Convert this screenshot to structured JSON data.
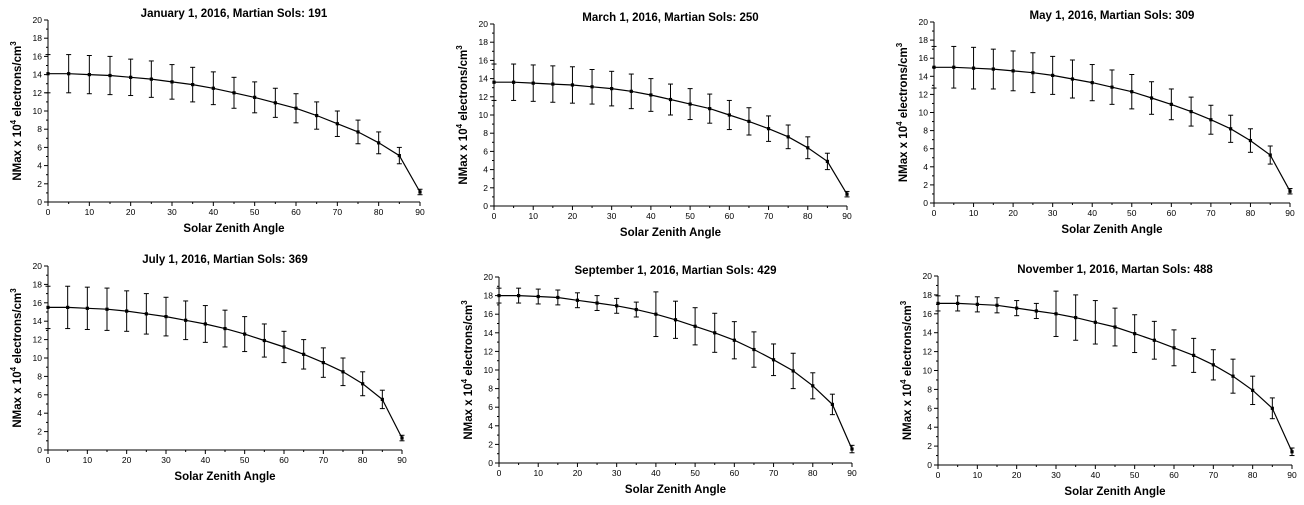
{
  "charts": [
    {
      "title": "January 1, 2016, Martian Sols: 191",
      "ylabel_pre": "NMax x 10",
      "ylabel_exp": "4",
      "ylabel_mid": " electrons/cm",
      "ylabel_sup": "3",
      "xlabel": "Solar Zenith Angle"
    },
    {
      "title": "March 1, 2016, Martian Sols: 250",
      "ylabel_pre": "NMax x 10",
      "ylabel_exp": "4",
      "ylabel_mid": " electrons/cm",
      "ylabel_sup": "3",
      "xlabel": "Solar Zenith Angle"
    },
    {
      "title": "May 1, 2016, Martian Sols: 309",
      "ylabel_pre": "NMax x 10",
      "ylabel_exp": "4",
      "ylabel_mid": " electrons/cm",
      "ylabel_sup": "3",
      "xlabel": "Solar Zenith Angle"
    },
    {
      "title": "July 1, 2016, Martian Sols: 369",
      "ylabel_pre": "NMax x 10",
      "ylabel_exp": "4",
      "ylabel_mid": " electrons/cm",
      "ylabel_sup": "3",
      "xlabel": "Solar Zenith Angle"
    },
    {
      "title": "September 1, 2016, Martian Sols: 429",
      "ylabel_pre": "NMax x 10",
      "ylabel_exp": "4",
      "ylabel_mid": " electrons/cm",
      "ylabel_sup": "3",
      "xlabel": "Solar Zenith Angle"
    },
    {
      "title": "November 1, 2016, Martan Sols: 488",
      "ylabel_pre": "NMax x 10",
      "ylabel_exp": "4",
      "ylabel_mid": " electrons/cm",
      "ylabel_sup": "3",
      "xlabel": "Solar Zenith Angle"
    }
  ],
  "chart_data": [
    {
      "type": "line",
      "title": "January 1, 2016, Martian Sols: 191",
      "xlabel": "Solar Zenith Angle",
      "ylabel": "NMax x 10^4 electrons/cm^3",
      "xlim": [
        0,
        90
      ],
      "ylim": [
        0,
        20
      ],
      "xticks": [
        0,
        10,
        20,
        30,
        40,
        50,
        60,
        70,
        80,
        90
      ],
      "yticks": [
        0,
        2,
        4,
        6,
        8,
        10,
        12,
        14,
        16,
        18,
        20
      ],
      "x": [
        0,
        5,
        10,
        15,
        20,
        25,
        30,
        35,
        40,
        45,
        50,
        55,
        60,
        65,
        70,
        75,
        80,
        85,
        90
      ],
      "y": [
        14.1,
        14.1,
        14.0,
        13.9,
        13.7,
        13.5,
        13.2,
        12.9,
        12.5,
        12.0,
        11.5,
        10.9,
        10.3,
        9.5,
        8.6,
        7.7,
        6.5,
        5.1,
        1.1
      ],
      "error": [
        2.1,
        2.1,
        2.1,
        2.1,
        2.0,
        2.0,
        1.9,
        1.9,
        1.8,
        1.7,
        1.7,
        1.6,
        1.6,
        1.5,
        1.4,
        1.3,
        1.2,
        0.9,
        0.3
      ],
      "grid": false
    },
    {
      "type": "line",
      "title": "March 1, 2016, Martian Sols: 250",
      "xlabel": "Solar Zenith Angle",
      "ylabel": "NMax x 10^4 electrons/cm^3",
      "xlim": [
        0,
        90
      ],
      "ylim": [
        0,
        20
      ],
      "xticks": [
        0,
        10,
        20,
        30,
        40,
        50,
        60,
        70,
        80,
        90
      ],
      "yticks": [
        0,
        2,
        4,
        6,
        8,
        10,
        12,
        14,
        16,
        18,
        20
      ],
      "x": [
        0,
        5,
        10,
        15,
        20,
        25,
        30,
        35,
        40,
        45,
        50,
        55,
        60,
        65,
        70,
        75,
        80,
        85,
        90
      ],
      "y": [
        13.6,
        13.6,
        13.5,
        13.4,
        13.3,
        13.1,
        12.9,
        12.6,
        12.2,
        11.7,
        11.2,
        10.7,
        10.0,
        9.3,
        8.5,
        7.6,
        6.4,
        4.9,
        1.3
      ],
      "error": [
        2.0,
        2.0,
        2.0,
        2.0,
        2.0,
        1.9,
        1.9,
        1.9,
        1.8,
        1.7,
        1.7,
        1.6,
        1.6,
        1.5,
        1.4,
        1.3,
        1.2,
        0.9,
        0.3
      ],
      "grid": false
    },
    {
      "type": "line",
      "title": "May 1, 2016, Martian Sols: 309",
      "xlabel": "Solar Zenith Angle",
      "ylabel": "NMax x 10^4 electrons/cm^3",
      "xlim": [
        0,
        90
      ],
      "ylim": [
        0,
        20
      ],
      "xticks": [
        0,
        10,
        20,
        30,
        40,
        50,
        60,
        70,
        80,
        90
      ],
      "yticks": [
        0,
        2,
        4,
        6,
        8,
        10,
        12,
        14,
        16,
        18,
        20
      ],
      "x": [
        0,
        5,
        10,
        15,
        20,
        25,
        30,
        35,
        40,
        45,
        50,
        55,
        60,
        65,
        70,
        75,
        80,
        85,
        90
      ],
      "y": [
        15.0,
        15.0,
        14.9,
        14.8,
        14.6,
        14.4,
        14.1,
        13.7,
        13.3,
        12.8,
        12.3,
        11.6,
        10.9,
        10.1,
        9.2,
        8.2,
        6.9,
        5.3,
        1.3
      ],
      "error": [
        2.3,
        2.3,
        2.3,
        2.2,
        2.2,
        2.2,
        2.1,
        2.1,
        2.0,
        1.9,
        1.9,
        1.8,
        1.7,
        1.6,
        1.6,
        1.5,
        1.3,
        1.0,
        0.3
      ],
      "grid": false
    },
    {
      "type": "line",
      "title": "July 1, 2016, Martian Sols: 369",
      "xlabel": "Solar Zenith Angle",
      "ylabel": "NMax x 10^4 electrons/cm^3",
      "xlim": [
        0,
        90
      ],
      "ylim": [
        0,
        20
      ],
      "xticks": [
        0,
        10,
        20,
        30,
        40,
        50,
        60,
        70,
        80,
        90
      ],
      "yticks": [
        0,
        2,
        4,
        6,
        8,
        10,
        12,
        14,
        16,
        18,
        20
      ],
      "x": [
        0,
        5,
        10,
        15,
        20,
        25,
        30,
        35,
        40,
        45,
        50,
        55,
        60,
        65,
        70,
        75,
        80,
        85,
        90
      ],
      "y": [
        15.5,
        15.5,
        15.4,
        15.3,
        15.1,
        14.8,
        14.5,
        14.1,
        13.7,
        13.2,
        12.6,
        11.9,
        11.2,
        10.4,
        9.5,
        8.5,
        7.2,
        5.5,
        1.3
      ],
      "error": [
        2.3,
        2.3,
        2.3,
        2.3,
        2.2,
        2.2,
        2.1,
        2.1,
        2.0,
        2.0,
        1.9,
        1.8,
        1.7,
        1.6,
        1.6,
        1.5,
        1.3,
        1.0,
        0.3
      ],
      "grid": false
    },
    {
      "type": "line",
      "title": "September 1, 2016, Martian Sols: 429",
      "xlabel": "Solar Zenith Angle",
      "ylabel": "NMax x 10^4 electrons/cm^3",
      "xlim": [
        0,
        90
      ],
      "ylim": [
        0,
        20
      ],
      "xticks": [
        0,
        10,
        20,
        30,
        40,
        50,
        60,
        70,
        80,
        90
      ],
      "yticks": [
        0,
        2,
        4,
        6,
        8,
        10,
        12,
        14,
        16,
        18,
        20
      ],
      "x": [
        0,
        5,
        10,
        15,
        20,
        25,
        30,
        35,
        40,
        45,
        50,
        55,
        60,
        65,
        70,
        75,
        80,
        85,
        90
      ],
      "y": [
        18.0,
        18.0,
        17.9,
        17.8,
        17.5,
        17.2,
        16.9,
        16.5,
        16.0,
        15.4,
        14.7,
        14.0,
        13.2,
        12.2,
        11.1,
        9.9,
        8.3,
        6.3,
        1.5
      ],
      "error": [
        0.8,
        0.8,
        0.8,
        0.8,
        0.8,
        0.8,
        0.8,
        0.8,
        2.4,
        2.0,
        2.0,
        2.1,
        2.0,
        1.9,
        1.7,
        1.9,
        1.4,
        1.1,
        0.4
      ],
      "grid": false
    },
    {
      "type": "line",
      "title": "November 1, 2016, Martan Sols: 488",
      "xlabel": "Solar Zenith Angle",
      "ylabel": "NMax x 10^4 electrons/cm^3",
      "xlim": [
        0,
        90
      ],
      "ylim": [
        0,
        20
      ],
      "xticks": [
        0,
        10,
        20,
        30,
        40,
        50,
        60,
        70,
        80,
        90
      ],
      "yticks": [
        0,
        2,
        4,
        6,
        8,
        10,
        12,
        14,
        16,
        18,
        20
      ],
      "x": [
        0,
        5,
        10,
        15,
        20,
        25,
        30,
        35,
        40,
        45,
        50,
        55,
        60,
        65,
        70,
        75,
        80,
        85,
        90
      ],
      "y": [
        17.1,
        17.1,
        17.0,
        16.9,
        16.6,
        16.3,
        16.0,
        15.6,
        15.1,
        14.6,
        13.9,
        13.2,
        12.4,
        11.6,
        10.6,
        9.4,
        7.9,
        6.0,
        1.4
      ],
      "error": [
        0.8,
        0.8,
        0.8,
        0.8,
        0.8,
        0.8,
        2.4,
        2.4,
        2.3,
        2.0,
        2.0,
        2.0,
        1.9,
        1.8,
        1.6,
        1.8,
        1.5,
        1.1,
        0.4
      ],
      "grid": false
    }
  ]
}
